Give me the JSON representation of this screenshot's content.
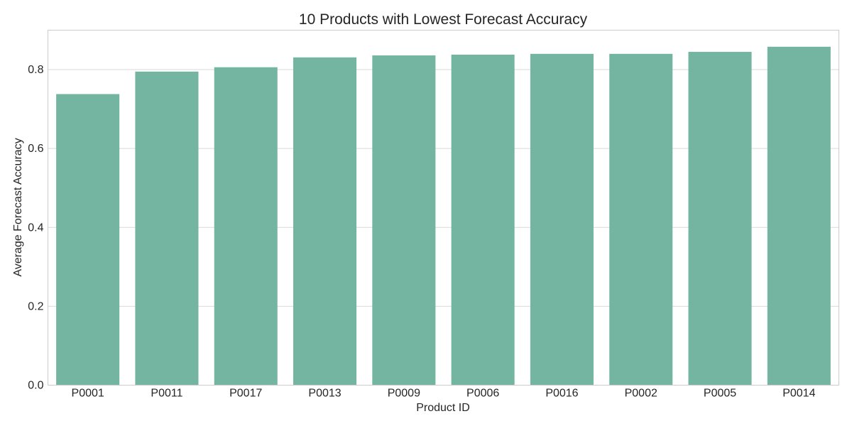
{
  "chart_data": {
    "type": "bar",
    "title": "10 Products with Lowest Forecast Accuracy",
    "xlabel": "Product ID",
    "ylabel": "Average Forecast Accuracy",
    "categories": [
      "P0001",
      "P0011",
      "P0017",
      "P0013",
      "P0009",
      "P0006",
      "P0016",
      "P0002",
      "P0005",
      "P0014"
    ],
    "values": [
      0.738,
      0.795,
      0.806,
      0.831,
      0.836,
      0.838,
      0.84,
      0.84,
      0.845,
      0.858
    ],
    "ylim": [
      0,
      0.9
    ],
    "yticks": [
      "0.0",
      "0.2",
      "0.4",
      "0.6",
      "0.8"
    ],
    "grid": true,
    "bar_color": "#73b5a1"
  }
}
